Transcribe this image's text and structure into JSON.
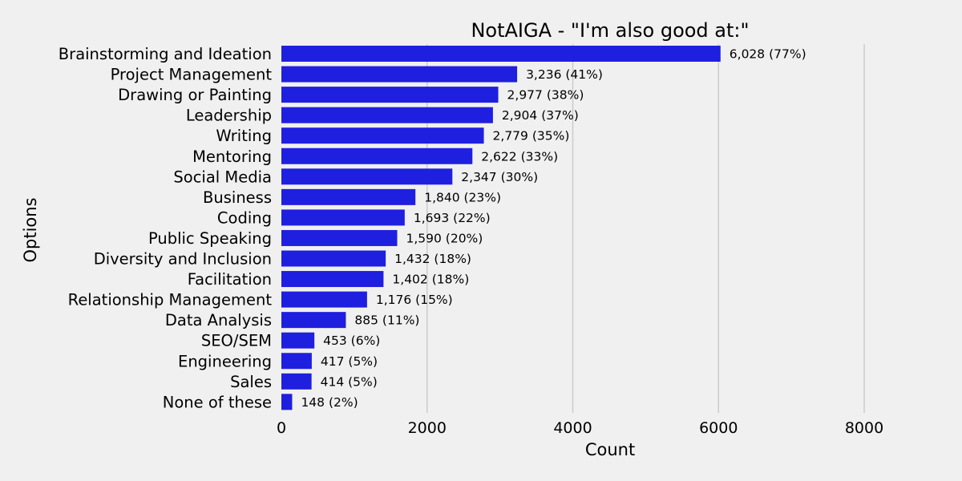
{
  "chart_data": {
    "type": "bar",
    "orientation": "horizontal",
    "title": "NotAIGA - \"I'm also good at:\"",
    "xlabel": "Count",
    "ylabel": "Options",
    "xlim": [
      0,
      9000
    ],
    "xticks": [
      0,
      2000,
      4000,
      6000,
      8000
    ],
    "xtick_labels": [
      "0",
      "2000",
      "4000",
      "6000",
      "8000"
    ],
    "grid": "vertical",
    "bar_color": "#1f1fe0",
    "categories": [
      "Brainstorming and Ideation",
      "Project Management",
      "Drawing or Painting",
      "Leadership",
      "Writing",
      "Mentoring",
      "Social Media",
      "Business",
      "Coding",
      "Public Speaking",
      "Diversity and Inclusion",
      "Facilitation",
      "Relationship Management",
      "Data Analysis",
      "SEO/SEM",
      "Engineering",
      "Sales",
      "None of these"
    ],
    "values": [
      6028,
      3236,
      2977,
      2904,
      2779,
      2622,
      2347,
      1840,
      1693,
      1590,
      1432,
      1402,
      1176,
      885,
      453,
      417,
      414,
      148
    ],
    "data_labels": [
      "6,028 (77%)",
      "3,236 (41%)",
      "2,977 (38%)",
      "2,904 (37%)",
      "2,779 (35%)",
      "2,622 (33%)",
      "2,347 (30%)",
      "1,840 (23%)",
      "1,693 (22%)",
      "1,590 (20%)",
      "1,432 (18%)",
      "1,402 (18%)",
      "1,176 (15%)",
      "885 (11%)",
      "453 (6%)",
      "417 (5%)",
      "414 (5%)",
      "148 (2%)"
    ]
  }
}
